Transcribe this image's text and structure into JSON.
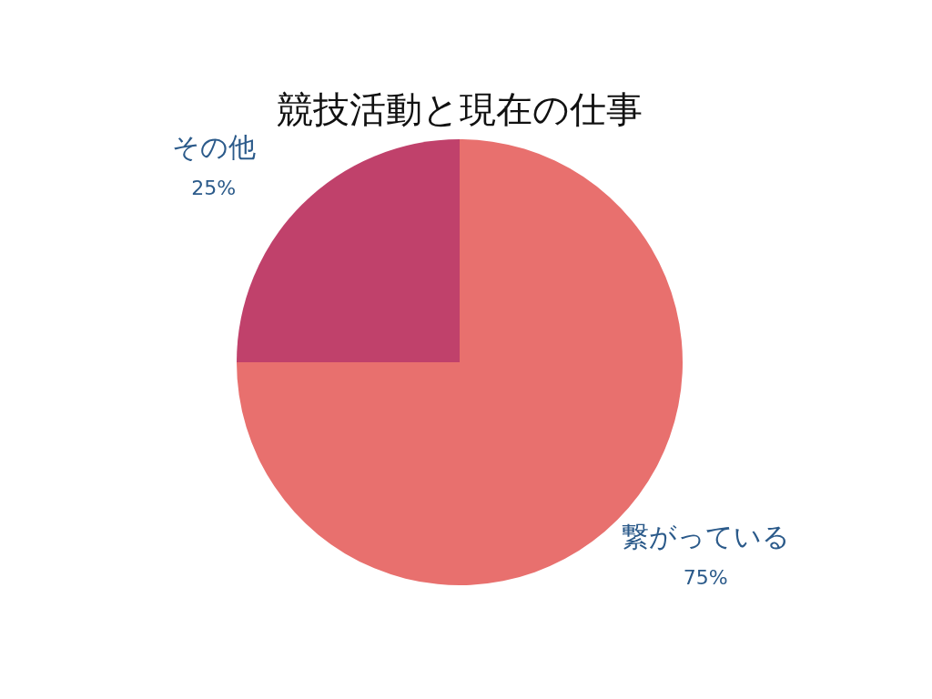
{
  "chart_data": {
    "type": "pie",
    "title": "競技活動と現在の仕事",
    "categories": [
      "繋がっている",
      "その他"
    ],
    "values": [
      75,
      25
    ],
    "colors": [
      "#e8706e",
      "#c0416b"
    ],
    "value_labels": [
      "75%",
      "25%"
    ],
    "legend": false
  }
}
